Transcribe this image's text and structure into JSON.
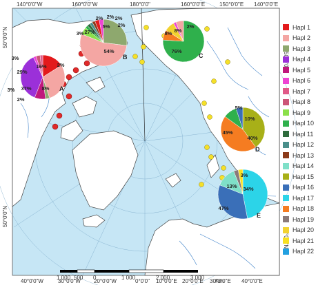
{
  "coord_labels": {
    "top": [
      "140°0'0\"W",
      "160°0'0\"W",
      "180°0'0\"",
      "160°0'0\"E",
      "150°0'0\"E",
      "140°0'0\"E"
    ],
    "bottom": [
      "40°0'0\"W",
      "30°0'0\"W",
      "20°0'0\"W",
      "0°0'0\"",
      "10°0'0\"E",
      "20°0'0\"E",
      "30°0'0\"E",
      "40°0'0\"E"
    ],
    "left": [
      "50°0'0\"N",
      "50°0'0\"N"
    ],
    "right": [
      "50°0'0\"N",
      "50°0'0\"N"
    ]
  },
  "sites": [
    "A",
    "B",
    "C",
    "D",
    "E"
  ],
  "pie_labels": {
    "A": [
      "29%",
      "16%",
      "37%",
      "8%",
      "3%",
      "2%",
      "3%",
      "2%"
    ],
    "B": [
      "27%",
      "54%",
      "5%",
      "2%",
      "2%",
      "2%",
      "2%",
      "3%"
    ],
    "C": [
      "76%",
      "8%",
      "8%",
      "2%"
    ],
    "D": [
      "45%",
      "40%",
      "10%",
      "5%"
    ],
    "E": [
      "47%",
      "34%",
      "13%",
      "3%"
    ]
  },
  "legend": [
    {
      "label": "Hapl 1",
      "color": "#e31a1c"
    },
    {
      "label": "Hapl 2",
      "color": "#f4a6a3"
    },
    {
      "label": "Hapl 3",
      "color": "#8ea86e"
    },
    {
      "label": "Hapl 4",
      "color": "#9b30d9"
    },
    {
      "label": "Hapl 5",
      "color": "#c0187c"
    },
    {
      "label": "Hapl 6",
      "color": "#ee44d3"
    },
    {
      "label": "Hapl 7",
      "color": "#e05a88"
    },
    {
      "label": "Hapl 8",
      "color": "#cc5577"
    },
    {
      "label": "Hapl 9",
      "color": "#8be04a"
    },
    {
      "label": "Hapl 10",
      "color": "#2fb04c"
    },
    {
      "label": "Hapl 11",
      "color": "#2e6b3c"
    },
    {
      "label": "Hapl 12",
      "color": "#4a8f8a"
    },
    {
      "label": "Hapl 13",
      "color": "#8b3a1a"
    },
    {
      "label": "Hapl 14",
      "color": "#7fe0c8"
    },
    {
      "label": "Hapl 15",
      "color": "#a8b018"
    },
    {
      "label": "Hapl 16",
      "color": "#3a6fb8"
    },
    {
      "label": "Hapl 17",
      "color": "#2cd4e8"
    },
    {
      "label": "Hapl 18",
      "color": "#f57c21"
    },
    {
      "label": "Hapl 19",
      "color": "#8a7a7a"
    },
    {
      "label": "Hapl 20",
      "color": "#f2d230"
    },
    {
      "label": "Hapl 21",
      "color": "#f8e020"
    },
    {
      "label": "Hapl 22",
      "color": "#22a0e0"
    }
  ],
  "scale": {
    "ticks": [
      "1 000",
      "500",
      "0",
      "1 000",
      "2 000",
      "3 000"
    ],
    "unit": "Km"
  },
  "colors": {
    "ocean": "#c6e6f5",
    "land": "#ffffff",
    "coast": "#444444",
    "river": "#3a7fc8",
    "graticule": "#7aa8c8",
    "site_red": "#e02a2a",
    "site_yellow": "#f5e028"
  }
}
